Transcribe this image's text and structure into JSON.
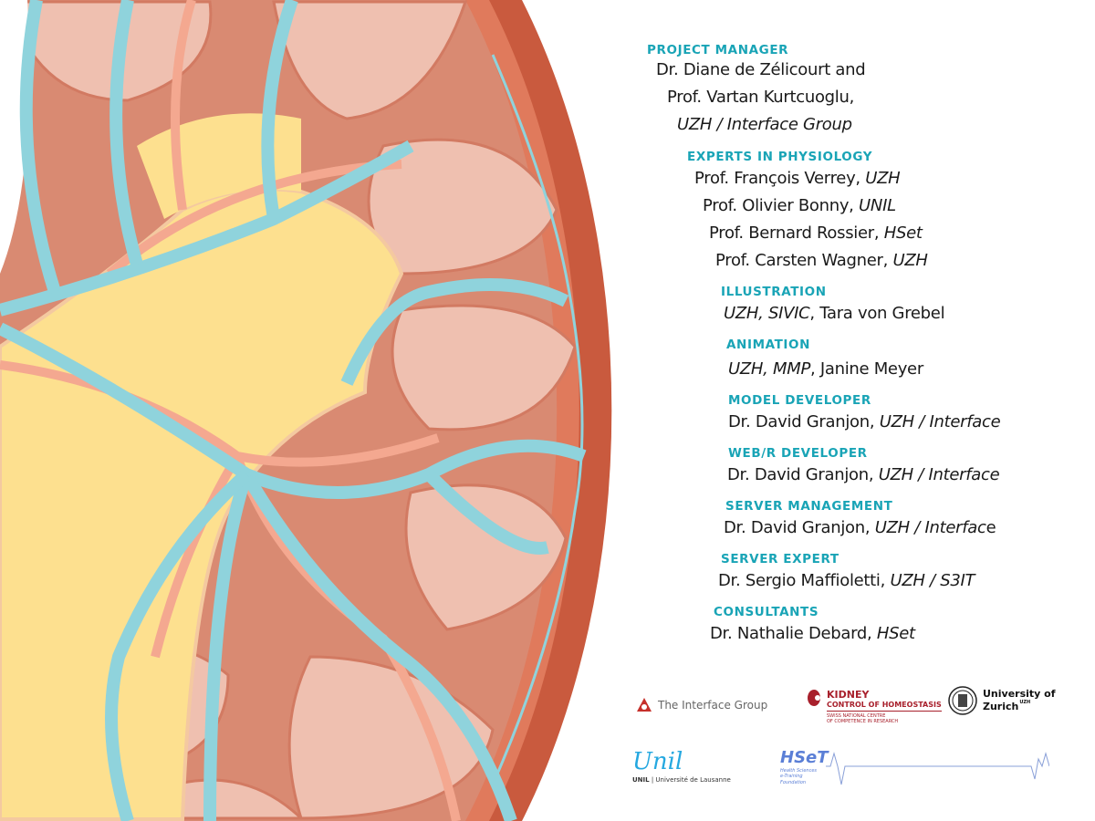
{
  "colors": {
    "heading": "#19a4b6",
    "capsule": "#c95a3e",
    "cortex": "#d98a72",
    "pyramid": "#efc0b0",
    "pelvis": "#fde08f",
    "vein": "#8fd3dc",
    "artery": "#f4a890"
  },
  "credits": [
    {
      "type": "heading",
      "text": "PROJECT MANAGER"
    },
    {
      "type": "line",
      "parts": [
        {
          "t": "Dr. Diane de Zélicourt and",
          "i": false
        }
      ]
    },
    {
      "type": "line",
      "parts": [
        {
          "t": "Prof. Vartan Kurtcuoglu,",
          "i": false
        }
      ]
    },
    {
      "type": "line",
      "parts": [
        {
          "t": "UZH / Interface Group",
          "i": true
        }
      ]
    },
    {
      "type": "heading",
      "text": "EXPERTS IN PHYSIOLOGY"
    },
    {
      "type": "line",
      "parts": [
        {
          "t": "Prof. François Verrey, ",
          "i": false
        },
        {
          "t": "UZH",
          "i": true
        }
      ]
    },
    {
      "type": "line",
      "parts": [
        {
          "t": "Prof. Olivier Bonny, ",
          "i": false
        },
        {
          "t": "UNIL",
          "i": true
        }
      ]
    },
    {
      "type": "line",
      "parts": [
        {
          "t": "Prof. Bernard Rossier, ",
          "i": false
        },
        {
          "t": "HSet",
          "i": true
        }
      ]
    },
    {
      "type": "line",
      "parts": [
        {
          "t": "Prof. Carsten Wagner, ",
          "i": false
        },
        {
          "t": "UZH",
          "i": true
        }
      ]
    },
    {
      "type": "heading",
      "text": "ILLUSTRATION"
    },
    {
      "type": "line",
      "parts": [
        {
          "t": "UZH, SIVIC",
          "i": true
        },
        {
          "t": ", Tara von Grebel",
          "i": false
        }
      ]
    },
    {
      "type": "heading",
      "text": "ANIMATION"
    },
    {
      "type": "line",
      "parts": [
        {
          "t": "UZH, MMP",
          "i": true
        },
        {
          "t": ", Janine Meyer",
          "i": false
        }
      ]
    },
    {
      "type": "heading",
      "text": "MODEL DEVELOPER"
    },
    {
      "type": "line",
      "parts": [
        {
          "t": "Dr. David Granjon, ",
          "i": false
        },
        {
          "t": "UZH / Interface",
          "i": true
        }
      ]
    },
    {
      "type": "heading",
      "text": "WEB/R DEVELOPER"
    },
    {
      "type": "line",
      "parts": [
        {
          "t": "Dr. David Granjon, ",
          "i": false
        },
        {
          "t": "UZH / Interface",
          "i": true
        }
      ]
    },
    {
      "type": "heading",
      "text": "SERVER MANAGEMENT"
    },
    {
      "type": "line",
      "parts": [
        {
          "t": "Dr. David Granjon, ",
          "i": false
        },
        {
          "t": "UZH / Interfac",
          "i": true
        },
        {
          "t": "e",
          "i": false
        }
      ]
    },
    {
      "type": "heading",
      "text": "SERVER EXPERT"
    },
    {
      "type": "line",
      "parts": [
        {
          "t": "Dr. Sergio Maffioletti, ",
          "i": false
        },
        {
          "t": "UZH / S3IT",
          "i": true
        }
      ]
    },
    {
      "type": "heading",
      "text": "CONSULTANTS"
    },
    {
      "type": "line",
      "parts": [
        {
          "t": "Dr. Nathalie Debard, ",
          "i": false
        },
        {
          "t": "HSet",
          "i": true
        }
      ]
    }
  ],
  "logos": {
    "interface": "The Interface Group",
    "kidney_title": "KIDNEY",
    "kidney_sub": "CONTROL OF HOMEOSTASIS",
    "kidney_note1": "SWISS NATIONAL CENTRE",
    "kidney_note2": "OF COMPETENCE IN RESEARCH",
    "uzh1": "University of",
    "uzh2": "Zurich",
    "uzh_sup": "UZH",
    "unil_script": "Unil",
    "unil_caption_bold": "UNIL",
    "unil_caption": " | Université de Lausanne",
    "hset": "HSeT",
    "hset_sub1": "Health Sciences",
    "hset_sub2": "e-Training",
    "hset_sub3": "Foundation"
  }
}
